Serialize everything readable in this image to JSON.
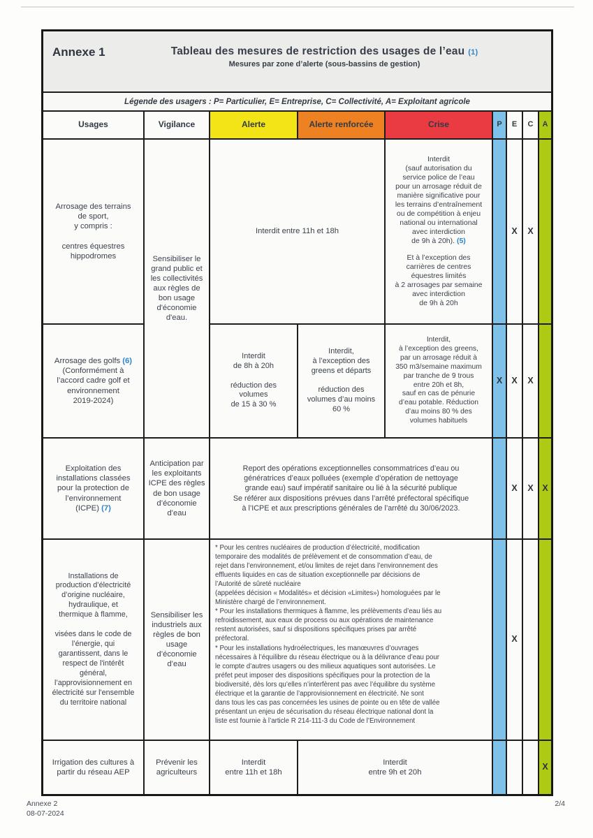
{
  "header": {
    "annexe_label": "Annexe 1",
    "title": "Tableau des mesures de restriction des usages de l’eau",
    "title_ref": "(1)",
    "subtitle": "Mesures par zone d’alerte (sous-bassins de gestion)"
  },
  "legend": "Légende des usagers : P= Particulier, E= Entreprise, C= Collectivité, A= Exploitant agricole",
  "columns": {
    "usages": "Usages",
    "vigilance": "Vigilance",
    "alerte": "Alerte",
    "alerte_renforcee": "Alerte renforcée",
    "crise": "Crise",
    "user_p": "P",
    "user_e": "E",
    "user_c": "C",
    "user_a": "A"
  },
  "colors": {
    "alerte": "#f3e417",
    "alerte_renforcee": "#ee8222",
    "crise": "#e93b41",
    "particulier_col": "#7fc2e9",
    "agricole_col": "#aeca14",
    "footnote_ref": "#2f85c8",
    "header_band": "#ececea"
  },
  "rows": {
    "sport": {
      "usage": "Arrosage des terrains\nde sport,\ny compris :\n\ncentres équestres\nhippodromes",
      "vigilance": "Sensibiliser le\ngrand public et\nles collectivités\naux règles de\nbon usage\nd'économie\nd'eau.",
      "alerte_merged": "Interdit entre 11h et 18h",
      "crise_main": "Interdit\n(sauf autorisation du\nservice police de l’eau\npour un arrosage réduit de\nmanière significative pour\nles terrains d’entraînement\nou de compétition à enjeu\nnational ou international\navec interdiction\nde 9h à 20h).",
      "crise_ref": "(5)",
      "crise_extra": "Et à l’exception des\ncarrières de centres\néquestres limités\nà 2 arrosages par semaine\navec interdiction\nde 9h à 20h",
      "marks": [
        "",
        "X",
        "X",
        ""
      ]
    },
    "golf": {
      "usage_main": "Arrosage des golfs",
      "usage_ref": "(6)",
      "usage_rest": "(Conformément à\nl’accord cadre golf et\nenvironnement\n2019-2024)",
      "alerte": "Interdit\nde 8h à 20h\n\nréduction des\nvolumes\nde 15 à 30 %",
      "alerte_renforcee": "Interdit,\nà l’exception des\ngreens et départs\n\nréduction  des\nvolumes d’au moins\n60 %",
      "crise": "Interdit,\nà l’exception des greens,\npar un arrosage réduit à\n350 m3/semaine maximum\npar tranche de 9 trous\nentre 20h et 8h,\nsauf en cas de pénurie\nd’eau potable. Réduction\nd’au moins 80 % des\nvolumes habituels",
      "marks": [
        "X",
        "X",
        "X",
        ""
      ]
    },
    "icpe": {
      "usage_main": "Exploitation des\ninstallations classées\npour la protection de\nl’environnement\n(ICPE)",
      "usage_ref": "(7)",
      "vigilance": "Anticipation par\nles exploitants\nICPE des règles\nde bon usage\nd’économie\nd’eau",
      "restriction": "Report des opérations exceptionnelles consommatrices d’eau ou\ngénératrices d’eaux polluées (exemple d’opération de nettoyage\ngrande eau) sauf impératif sanitaire ou lié à la sécurité publique\nSe référer aux dispositions prévues dans l’arrêté préfectoral spécifique\nà l’ICPE et aux prescriptions générales de l’arrêté du 30/06/2023.",
      "marks": [
        "",
        "X",
        "X",
        "X"
      ]
    },
    "electricite": {
      "usage": "Installations de\nproduction d’électricité\nd’origine nucléaire,\nhydraulique, et\nthermique à flamme,\n\nvisées dans le code de\nl’énergie, qui\ngarantissent, dans le\nrespect de l'intérêt\ngénéral,\nl’approvisionnement en\nélectricité sur l'ensemble\ndu territoire national",
      "vigilance": "Sensibiliser les\nindustriels aux\nrègles de bon\nusage\nd’économie\nd’eau",
      "restriction": "* Pour les centres nucléaires de production d’électricité, modification\ntemporaire des modalités de prélèvement et de consommation d’eau, de\nrejet dans l’environnement, et/ou limites de rejet dans l’environnement des\neffluents liquides en cas de situation exceptionnelle par décisions de\nl’Autorité de sûreté nucléaire\n(appelées décision « Modalités» et décision «Limites») homologuées par le\nMinistère chargé de l’environnement.\n* Pour les installations thermiques à flamme, les prélèvements d’eau liés au\nrefroidissement, aux eaux de process ou aux opérations de maintenance\nrestent autorisées, sauf si dispositions spécifiques prises par arrêté\npréfectoral.\n* Pour les installations hydroélectriques, les manœuvres d’ouvrages\nnécessaires à l’équilibre du réseau électrique ou à la délivrance d’eau pour\nle compte d’autres usagers ou des milieux aquatiques sont autorisées. Le\npréfet peut imposer des dispositions spécifiques pour la protection de la\nbiodiversité, dès lors qu’elles n’interfèrent pas avec l’équilibre du système\nélectrique et la garantie de l’approvisionnement en électricité. Ne sont\ndans tous les cas pas concernées les usines de pointe ou en tête de vallée\nprésentant un enjeu de sécurisation du réseau électrique national dont la\nliste est fournie à l’article R 214-111-3 du Code de l’Environnement",
      "marks": [
        "",
        "X",
        "",
        ""
      ]
    },
    "irrigation": {
      "usage": "Irrigation des cultures à\npartir du réseau AEP",
      "vigilance": "Prévenir les\nagriculteurs",
      "alerte": "Interdit\nentre 11h et 18h",
      "merged": "Interdit\nentre 9h et 20h",
      "marks": [
        "",
        "",
        "",
        "X"
      ]
    }
  },
  "footer": {
    "left_line1": "Annexe 2",
    "left_line2": "08-07-2024",
    "page_number": "2/4"
  }
}
